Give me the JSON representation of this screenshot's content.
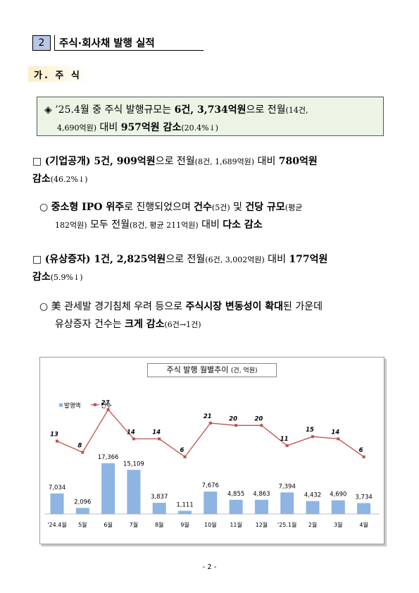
{
  "section": {
    "number": "2",
    "title": "주식·회사채 발행 실적"
  },
  "subsection": {
    "title": "가. 주 식"
  },
  "summary": {
    "marker": "◈",
    "p1": "’25.4월 중 주식 발행규모는 ",
    "p1b": "6건, 3,734억원",
    "p1c": "으로 전월",
    "p1d": "(14건,",
    "p2": "4,690억원)",
    "p2b": " 대비 ",
    "p2c": "957억원 감소",
    "p2d": "(20.4%↓)"
  },
  "ipo": {
    "marker": "□",
    "p1": "(기업공개) 5건, 909억원",
    "p1b": "으로 전월",
    "p1c": "(8건, 1,689억원)",
    "p1d": " 대비 ",
    "p1e": "780억원",
    "p2": "감소",
    "p2b": "(46.2%↓)"
  },
  "ipo_bullet": {
    "marker": "○",
    "p1": "중소형 IPO 위주",
    "p1b": "로 진행되었으며 ",
    "p1c": "건수",
    "p1d": "(5건)",
    "p1e": " 및 ",
    "p1f": "건당 규모",
    "p1g": "(평균",
    "p2": "182억원)",
    "p2b": " 모두 전월",
    "p2c": "(8건, 평균 211억원)",
    "p2d": " 대비 ",
    "p2e": "다소 감소"
  },
  "rights": {
    "marker": "□",
    "p1": "(유상증자) 1건, 2,825억원",
    "p1b": "으로 전월",
    "p1c": "(6건, 3,002억원)",
    "p1d": " 대비 ",
    "p1e": "177억원",
    "p2": "감소",
    "p2b": "(5.9%↓)"
  },
  "rights_bullet": {
    "marker": "○",
    "p1": "美 관세발 경기침체 우려 등으로 ",
    "p1b": "주식시장 변동성이 확대",
    "p1c": "된 가운데",
    "p2": "유상증자 건수는 ",
    "p2b": "크게 감소",
    "p2c": "(6건→1건)"
  },
  "chart_data": {
    "type": "bar",
    "title": "주식 발행 월별추이",
    "unit": "(건, 억원)",
    "categories": [
      "'24.4월",
      "5월",
      "6월",
      "7월",
      "8월",
      "9월",
      "10월",
      "11월",
      "12월",
      "'25.1월",
      "2월",
      "3월",
      "4월"
    ],
    "series": [
      {
        "name": "발행액",
        "kind": "bar",
        "color": "#8db4e2",
        "values": [
          7034,
          2096,
          17366,
          15109,
          3837,
          1111,
          7676,
          4855,
          4863,
          7394,
          4432,
          4690,
          3734
        ],
        "labels": [
          "7,034",
          "2,096",
          "17,366",
          "15,109",
          "3,837",
          "1,111",
          "7,676",
          "4,855",
          "4,863",
          "7,394",
          "4,432",
          "4,690",
          "3,734"
        ]
      },
      {
        "name": "건수",
        "kind": "line",
        "color": "#c0504d",
        "values": [
          13,
          8,
          27,
          14,
          14,
          6,
          21,
          20,
          20,
          11,
          15,
          14,
          6
        ],
        "labels": [
          "13",
          "8",
          "27",
          "14",
          "14",
          "6",
          "21",
          "20",
          "20",
          "11",
          "15",
          "14",
          "6"
        ]
      }
    ],
    "legend": "top-left"
  },
  "page_number": "- 2 -"
}
